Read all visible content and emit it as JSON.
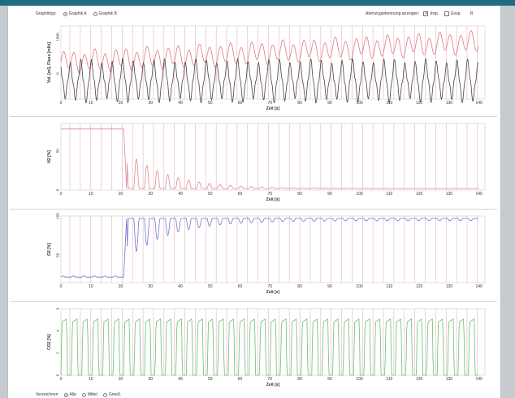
{
  "toolbar": {
    "graph_type_label": "Graphiktyp:",
    "graph_a": "Graphik A",
    "graph_b": "Graphik B",
    "breath_label": "Atemzugerkennung anzeigen:",
    "insp": "Insp.",
    "exp": "Exsp.",
    "extra": "R"
  },
  "footer": {
    "label": "Verzeichnen",
    "opt_all": "Alle",
    "opt_mean": "Mittel",
    "opt_size": "Groeß."
  },
  "colors": {
    "flow_red": "#e07a7a",
    "flow_black": "#444444",
    "n2": "#e08a8a",
    "o2": "#7676c8",
    "co2": "#6cbf6c",
    "marker": "#e8a6c8",
    "header": "#1f6b80"
  },
  "chart_data": [
    {
      "type": "line",
      "ylabel": "Vol. [ml], Fluss [ml/s]",
      "xlabel": "Zeit [s]",
      "xlim": [
        0,
        142
      ],
      "ylim": [
        -700,
        1300
      ],
      "yticks": [
        "0",
        "1000"
      ],
      "xticks": [
        "0",
        "10",
        "20",
        "30",
        "40",
        "50",
        "60",
        "70",
        "80",
        "90",
        "100",
        "110",
        "120",
        "130",
        "140"
      ]
    },
    {
      "type": "line",
      "ylabel": "N2 [%]",
      "xlabel": "Zeit [s]",
      "xlim": [
        0,
        142
      ],
      "ylim": [
        0,
        85
      ],
      "yticks": [
        "0",
        "50"
      ],
      "xticks": [
        "0",
        "10",
        "20",
        "30",
        "40",
        "50",
        "60",
        "70",
        "80",
        "90",
        "100",
        "110",
        "120",
        "130",
        "140"
      ]
    },
    {
      "type": "line",
      "ylabel": "O2 [%]",
      "xlabel": "Zeit [s]",
      "xlim": [
        0,
        142
      ],
      "ylim": [
        15,
        100
      ],
      "yticks": [
        "50",
        "100"
      ],
      "xticks": [
        "0",
        "10",
        "20",
        "30",
        "40",
        "50",
        "60",
        "70",
        "80",
        "90",
        "100",
        "110",
        "120",
        "130",
        "140"
      ]
    },
    {
      "type": "line",
      "ylabel": "CO2 [%]",
      "xlabel": "Zeit [s]",
      "xlim": [
        0,
        142
      ],
      "ylim": [
        0,
        6
      ],
      "yticks": [
        "0",
        "2",
        "4",
        "6"
      ],
      "xticks": [
        "0",
        "10",
        "20",
        "30",
        "40",
        "50",
        "60",
        "70",
        "80",
        "90",
        "100",
        "110",
        "120",
        "130",
        "140"
      ]
    }
  ]
}
